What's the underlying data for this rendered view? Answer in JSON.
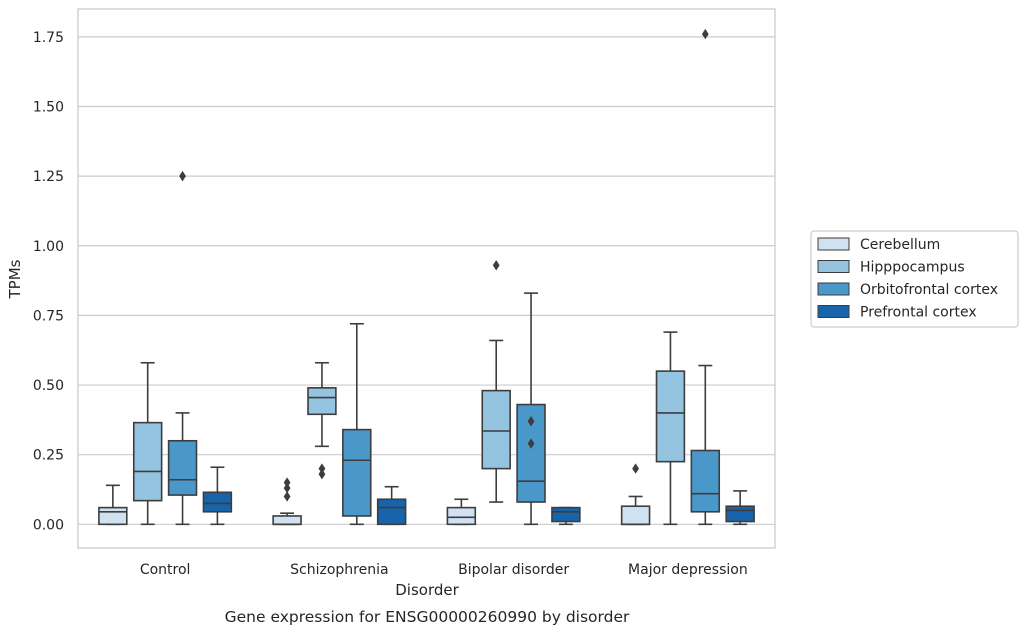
{
  "chart_data": {
    "type": "box",
    "xlabel": "Disorder",
    "ylabel": "TPMs",
    "caption": "Gene expression for ENSG00000260990 by disorder",
    "ylim": [
      -0.085,
      1.85
    ],
    "yticks": [
      "0.00",
      "0.25",
      "0.50",
      "0.75",
      "1.00",
      "1.25",
      "1.50",
      "1.75"
    ],
    "grid": "horizontal",
    "legend_position": "outside-right",
    "categories": [
      "Control",
      "Schizophrenia",
      "Bipolar disorder",
      "Major depression"
    ],
    "series": [
      {
        "name": "Cerebellum",
        "color": "#d0e1f2",
        "boxes": [
          {
            "whislo": 0.0,
            "q1": 0.0,
            "med": 0.045,
            "q3": 0.06,
            "whishi": 0.14,
            "fliers": []
          },
          {
            "whislo": 0.0,
            "q1": 0.0,
            "med": 0.0,
            "q3": 0.03,
            "whishi": 0.04,
            "fliers": [
              0.1,
              0.13,
              0.15
            ]
          },
          {
            "whislo": 0.0,
            "q1": 0.0,
            "med": 0.025,
            "q3": 0.06,
            "whishi": 0.09,
            "fliers": []
          },
          {
            "whislo": 0.0,
            "q1": 0.0,
            "med": 0.0,
            "q3": 0.065,
            "whishi": 0.1,
            "fliers": [
              0.2
            ]
          }
        ]
      },
      {
        "name": "Hipppocampus",
        "color": "#94c4df",
        "boxes": [
          {
            "whislo": 0.0,
            "q1": 0.085,
            "med": 0.19,
            "q3": 0.365,
            "whishi": 0.58,
            "fliers": []
          },
          {
            "whislo": 0.28,
            "q1": 0.395,
            "med": 0.455,
            "q3": 0.49,
            "whishi": 0.58,
            "fliers": [
              0.18,
              0.2
            ]
          },
          {
            "whislo": 0.08,
            "q1": 0.2,
            "med": 0.335,
            "q3": 0.48,
            "whishi": 0.66,
            "fliers": [
              0.93
            ]
          },
          {
            "whislo": 0.0,
            "q1": 0.225,
            "med": 0.4,
            "q3": 0.55,
            "whishi": 0.69,
            "fliers": []
          }
        ]
      },
      {
        "name": "Orbitofrontal cortex",
        "color": "#4a98c9",
        "boxes": [
          {
            "whislo": 0.0,
            "q1": 0.105,
            "med": 0.16,
            "q3": 0.3,
            "whishi": 0.4,
            "fliers": [
              1.25
            ]
          },
          {
            "whislo": 0.0,
            "q1": 0.03,
            "med": 0.23,
            "q3": 0.34,
            "whishi": 0.72,
            "fliers": []
          },
          {
            "whislo": 0.0,
            "q1": 0.08,
            "med": 0.155,
            "q3": 0.43,
            "whishi": 0.83,
            "fliers": [
              0.29,
              0.37
            ]
          },
          {
            "whislo": 0.0,
            "q1": 0.045,
            "med": 0.11,
            "q3": 0.265,
            "whishi": 0.57,
            "fliers": [
              1.76
            ]
          }
        ]
      },
      {
        "name": "Prefrontal cortex",
        "color": "#1764ab",
        "boxes": [
          {
            "whislo": 0.0,
            "q1": 0.045,
            "med": 0.075,
            "q3": 0.115,
            "whishi": 0.205,
            "fliers": []
          },
          {
            "whislo": 0.0,
            "q1": 0.0,
            "med": 0.06,
            "q3": 0.09,
            "whishi": 0.135,
            "fliers": []
          },
          {
            "whislo": 0.0,
            "q1": 0.01,
            "med": 0.045,
            "q3": 0.06,
            "whishi": 0.06,
            "fliers": []
          },
          {
            "whislo": 0.0,
            "q1": 0.01,
            "med": 0.05,
            "q3": 0.065,
            "whishi": 0.12,
            "fliers": []
          }
        ]
      }
    ]
  }
}
